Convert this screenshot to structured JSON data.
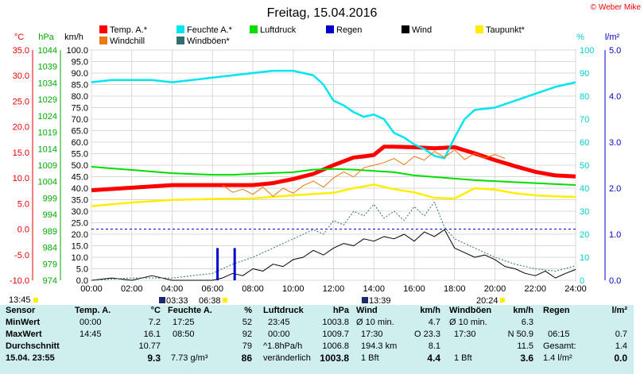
{
  "title": "Freitag, 15.04.2016",
  "brand": "© Weber Mike",
  "axis_units": {
    "temp": "°C",
    "pressure": "hPa",
    "wind": "km/h",
    "humidity": "%",
    "rain": "l/m²"
  },
  "legend": [
    {
      "label": "Temp. A.*",
      "color": "#ff0000"
    },
    {
      "label": "Feuchte A.*",
      "color": "#00e5ee"
    },
    {
      "label": "Luftdruck",
      "color": "#00dd00"
    },
    {
      "label": "Regen",
      "color": "#0000cc"
    },
    {
      "label": "Wind",
      "color": "#000000"
    },
    {
      "label": "Taupunkt*",
      "color": "#ffee00"
    },
    {
      "label": "Windchill",
      "color": "#ee7711"
    },
    {
      "label": "Windböen*",
      "color": "#2f6f6f"
    }
  ],
  "time_markers": {
    "left_time": "13:45",
    "sunrise": "03:33",
    "dawn": "06:38",
    "noon": "13:39",
    "sunset": "20:24"
  },
  "chart_data": {
    "type": "line",
    "title": "Freitag, 15.04.2016",
    "x_ticks": [
      "00:00",
      "02:00",
      "04:00",
      "06:00",
      "08:00",
      "10:00",
      "12:00",
      "14:00",
      "16:00",
      "18:00",
      "20:00",
      "22:00",
      "24:00"
    ],
    "xlim": [
      0,
      24
    ],
    "temp_axis": {
      "unit": "°C",
      "range": [
        -10,
        35
      ],
      "ticks": [
        "35.0",
        "30.0",
        "25.0",
        "20.0",
        "15.0",
        "10.0",
        "5.0",
        "0.0",
        "-5.0",
        "-10.0"
      ]
    },
    "pressure_axis": {
      "unit": "hPa",
      "range": [
        974,
        1046
      ],
      "ticks": [
        "1044",
        "1039",
        "1034",
        "1029",
        "1024",
        "1019",
        "1014",
        "1009",
        "1004",
        "999",
        "994",
        "989",
        "984",
        "979",
        "974"
      ]
    },
    "wind_axis": {
      "unit": "km/h",
      "range": [
        0,
        100
      ],
      "ticks": [
        "100.0",
        "95.0",
        "90.0",
        "85.0",
        "80.0",
        "75.0",
        "70.0",
        "65.0",
        "60.0",
        "55.0",
        "50.0",
        "45.0",
        "40.0",
        "35.0",
        "30.0",
        "25.0",
        "20.0",
        "15.0",
        "10.0",
        "5.0",
        "0.0"
      ]
    },
    "humidity_axis": {
      "unit": "%",
      "range": [
        0,
        100
      ],
      "ticks": [
        "100",
        "90",
        "80",
        "70",
        "60",
        "50",
        "40",
        "30",
        "20",
        "10",
        "0"
      ]
    },
    "rain_axis": {
      "unit": "l/m²",
      "range": [
        0,
        5
      ],
      "ticks": [
        "5.0",
        "4.0",
        "3.0",
        "2.0",
        "1.0",
        "0.0"
      ]
    },
    "series": [
      {
        "name": "Temp. A.*",
        "axis": "temp",
        "color": "#ff0000",
        "x": [
          0,
          2,
          4,
          6,
          7,
          8,
          9,
          10,
          11,
          12,
          13,
          13.5,
          14,
          14.5,
          15,
          16,
          17,
          18,
          19,
          20,
          21,
          22,
          23,
          24
        ],
        "y": [
          7.6,
          8.1,
          8.6,
          8.6,
          8.6,
          8.6,
          9.0,
          9.8,
          10.8,
          12.5,
          14.0,
          14.2,
          14.5,
          16.1,
          16.1,
          16.0,
          15.8,
          16.0,
          14.8,
          13.5,
          12.3,
          11.2,
          10.5,
          10.3
        ]
      },
      {
        "name": "Feuchte A.*",
        "axis": "humidity",
        "color": "#00e5ee",
        "x": [
          0,
          1,
          2,
          3,
          4,
          5,
          6,
          7,
          8,
          9,
          10,
          11,
          11.5,
          12,
          12.5,
          13,
          13.5,
          14,
          14.5,
          15,
          15.5,
          16,
          16.5,
          17,
          17.5,
          18,
          18.5,
          19,
          20,
          21,
          22,
          23,
          24
        ],
        "y": [
          86,
          87,
          87,
          87,
          86,
          87,
          88,
          89,
          90,
          91,
          91,
          89,
          85,
          78,
          76,
          73,
          71,
          72,
          70,
          64,
          62,
          59,
          57,
          54,
          53,
          62,
          70,
          74,
          75,
          78,
          81,
          84,
          86
        ]
      },
      {
        "name": "Luftdruck",
        "axis": "pressure",
        "color": "#00dd00",
        "x": [
          0,
          2,
          4,
          6,
          7,
          8,
          10,
          11,
          12,
          13,
          14,
          15,
          16,
          17,
          18,
          19,
          20,
          22,
          24
        ],
        "y": [
          1009.5,
          1008.5,
          1007.5,
          1007.0,
          1007.0,
          1007.3,
          1007.8,
          1008.6,
          1008.8,
          1008.6,
          1008.2,
          1007.8,
          1006.8,
          1006.3,
          1005.8,
          1005.3,
          1005.0,
          1004.4,
          1003.8
        ]
      },
      {
        "name": "Taupunkt*",
        "axis": "temp",
        "color": "#ffee00",
        "x": [
          0,
          2,
          4,
          6,
          8,
          10,
          12,
          13,
          14,
          15,
          16,
          17,
          18,
          19,
          20,
          21,
          22,
          23,
          24
        ],
        "y": [
          4.5,
          5.2,
          5.7,
          5.9,
          6.0,
          6.6,
          7.1,
          8.0,
          8.7,
          7.8,
          7.2,
          6.1,
          6.0,
          8.0,
          7.7,
          7.0,
          6.6,
          6.4,
          6.3
        ]
      },
      {
        "name": "Windchill",
        "axis": "temp",
        "color": "#ee7711",
        "x": [
          6.5,
          7,
          7.5,
          8,
          8.5,
          9,
          9.5,
          10,
          10.5,
          11,
          11.5,
          12,
          12.5,
          13,
          13.5,
          14,
          14.5,
          15,
          15.5,
          16,
          16.5,
          17,
          17.5,
          18,
          18.5,
          19,
          19.5,
          20,
          20.5
        ],
        "y": [
          8.6,
          7.2,
          7.8,
          6.8,
          8.2,
          6.4,
          8.0,
          7.0,
          8.5,
          9.4,
          8.2,
          10.0,
          11.2,
          10.2,
          12.0,
          12.5,
          13.0,
          13.8,
          12.6,
          14.2,
          13.5,
          15.2,
          14.0,
          15.5,
          13.6,
          14.8,
          13.9,
          14.6,
          13.8
        ]
      },
      {
        "name": "Wind",
        "axis": "wind",
        "color": "#000000",
        "x": [
          0,
          1,
          2,
          3,
          4,
          5,
          6,
          6.5,
          7,
          7.5,
          8,
          8.5,
          9,
          9.5,
          10,
          10.5,
          11,
          11.5,
          12,
          12.5,
          13,
          13.5,
          14,
          14.5,
          15,
          15.5,
          16,
          16.5,
          17,
          17.5,
          18,
          18.5,
          19,
          19.5,
          20,
          20.5,
          21,
          21.5,
          22,
          22.5,
          23,
          23.5,
          24
        ],
        "y": [
          0,
          1,
          0,
          2,
          0,
          0,
          0,
          1,
          3,
          2,
          5,
          4,
          7,
          6,
          9,
          10,
          13,
          11,
          14,
          16,
          15,
          18,
          17,
          19,
          18,
          20,
          17,
          21,
          19,
          22,
          14,
          12,
          10,
          11,
          9,
          6,
          5,
          3,
          2,
          4,
          1,
          3,
          4.7
        ]
      },
      {
        "name": "Windböen*",
        "axis": "wind",
        "color": "#2f6f6f",
        "x": [
          0,
          2,
          4,
          6,
          7,
          8,
          9,
          10,
          11,
          11.5,
          12,
          12.5,
          13,
          13.5,
          14,
          14.5,
          15,
          15.5,
          16,
          16.5,
          17,
          17.5,
          18,
          18.5,
          19,
          20,
          21,
          22,
          23,
          24
        ],
        "y": [
          0,
          1,
          1,
          3,
          7,
          10,
          14,
          18,
          22,
          20,
          26,
          24,
          30,
          28,
          33,
          27,
          30,
          26,
          32,
          28,
          34,
          23,
          18,
          16,
          14,
          10,
          7,
          5,
          4,
          6.3
        ]
      },
      {
        "name": "Regen",
        "axis": "rain",
        "color": "#0000cc",
        "x": [
          6.25,
          7.1
        ],
        "y": [
          0.7,
          0.7
        ]
      }
    ],
    "grid": true,
    "reference_line": {
      "axis": "temp",
      "value": 0,
      "style": "dashed",
      "color": "#0000cc"
    }
  },
  "table": {
    "rows_labels": [
      "Sensor",
      "MinWert",
      "MaxWert",
      "Durchschnitt",
      "15.04. 23:55"
    ],
    "temp": {
      "header": "Temp. A.",
      "unit": "°C",
      "min_time": "00:00",
      "min": "7.2",
      "max_time": "14:45",
      "max": "16.1",
      "avg": "10.77",
      "current": "9.3"
    },
    "humidity": {
      "header": "Feuchte A.",
      "unit": "%",
      "min_time": "17:25",
      "min": "52",
      "max_time": "08:50",
      "max": "92",
      "avg": "79",
      "current_abs": "7.73 g/m³",
      "current": "86"
    },
    "pressure": {
      "header": "Luftdruck",
      "unit": "hPa",
      "min_time": "23:45",
      "min": "1003.8",
      "max_time": "00:00",
      "max": "1009.7",
      "trend_label": "^1.8hPa/h",
      "avg": "1006.8",
      "current_label": "veränderlich",
      "current": "1003.8"
    },
    "wind": {
      "header": "Wind",
      "unit": "km/h",
      "min_label": "Ø 10 min.",
      "min": "4.7",
      "max_time": "17:30",
      "max_dir": "O 23.3",
      "run": "194.3 km",
      "avg": "8.1",
      "current_label": "1 Bft",
      "current": "4.4"
    },
    "gusts": {
      "header": "Windböen",
      "unit": "km/h",
      "min_label": "Ø 10 min.",
      "min": "6.3",
      "max_time": "17:30",
      "max": "N 50.9",
      "avg": "11.5",
      "current_label": "1 Bft",
      "current": "3.6"
    },
    "rain": {
      "header": "Regen",
      "unit": "l/m²",
      "max_time": "06:15",
      "max": "0.7",
      "total_label": "Gesamt:",
      "total": "1.4",
      "current_label": "1.4 l/m²",
      "current": "0.0"
    }
  }
}
